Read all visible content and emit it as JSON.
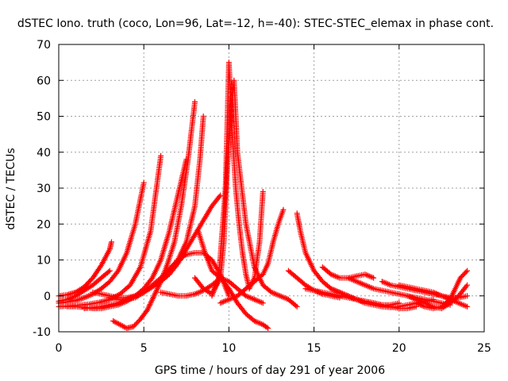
{
  "chart_data": {
    "type": "scatter",
    "title": "dSTEC Iono. truth (coco, Lon=96, Lat=-12, h=-40): STEC-STEC_elemax in phase cont.",
    "xlabel": "GPS time / hours of day 291 of year 2006",
    "ylabel": "dSTEC  / TECUs",
    "xlim": [
      0,
      25
    ],
    "ylim": [
      -10,
      70
    ],
    "xticks": [
      0,
      5,
      10,
      15,
      20,
      25
    ],
    "yticks": [
      -10,
      0,
      10,
      20,
      30,
      40,
      50,
      60,
      70
    ],
    "grid": true,
    "marker": "+",
    "color": "#ff0000",
    "series": [
      {
        "x": [
          0,
          0.5,
          1,
          1.5,
          2,
          2.5,
          3,
          3.1
        ],
        "y": [
          0,
          0.3,
          1,
          2.5,
          5,
          8.5,
          13,
          15
        ]
      },
      {
        "x": [
          0,
          0.5,
          1,
          1.5,
          2,
          2.5,
          3,
          3.5,
          4,
          4.5,
          5
        ],
        "y": [
          -2,
          -1.7,
          -1.3,
          -0.5,
          0.5,
          2,
          4,
          7,
          12,
          20,
          31.5
        ]
      },
      {
        "x": [
          0,
          0.6,
          1.2,
          1.8,
          2.4,
          3,
          3.6,
          4.2,
          4.8,
          5.4,
          6
        ],
        "y": [
          -3,
          -2.8,
          -2.6,
          -2.3,
          -1.8,
          -1,
          0.5,
          3,
          8,
          18,
          39
        ]
      },
      {
        "x": [
          0,
          0.5,
          1,
          1.5,
          2,
          2.5,
          3
        ],
        "y": [
          -1.5,
          -1,
          0,
          1.5,
          3,
          5,
          7
        ]
      },
      {
        "x": [
          0.5,
          1,
          1.5,
          2,
          2.5,
          3,
          3.5,
          4,
          4.5,
          5,
          5.5,
          6,
          6.5,
          7,
          7.5
        ],
        "y": [
          -3,
          -3,
          -3.2,
          -3.5,
          -3.5,
          -3,
          -2.5,
          -1.5,
          0,
          2,
          5,
          10,
          18,
          28,
          38
        ]
      },
      {
        "x": [
          1.5,
          2,
          2.5,
          3,
          3.5,
          4,
          4.5,
          5,
          5.5,
          6,
          6.5,
          7,
          7.5,
          8,
          8.5,
          9,
          9.5
        ],
        "y": [
          -3.5,
          -3.3,
          -3,
          -2.5,
          -2,
          -1,
          0,
          1,
          2.5,
          4,
          6,
          9,
          13,
          17,
          21,
          25,
          28
        ]
      },
      {
        "x": [
          3.2,
          3.6,
          4,
          4.4,
          4.8,
          5.2,
          5.6,
          6,
          6.4,
          6.8,
          7.2,
          7.6,
          7.8,
          8
        ],
        "y": [
          -7,
          -8,
          -9,
          -8.5,
          -6.5,
          -4,
          0,
          4,
          9,
          15,
          25,
          38,
          46,
          54
        ]
      },
      {
        "x": [
          2,
          2.5,
          3,
          3.5,
          4,
          4.5,
          5,
          5.5,
          6,
          6.5,
          7,
          7.5,
          8,
          8.3,
          8.5
        ],
        "y": [
          1,
          0.5,
          0,
          -0.5,
          -0.5,
          0,
          1,
          2.5,
          4.5,
          7,
          10,
          15,
          25,
          38,
          50
        ]
      },
      {
        "x": [
          3,
          3.5,
          4,
          4.5,
          5,
          5.5,
          6,
          6.5,
          7,
          7.5,
          8,
          8.5,
          9,
          9.5,
          10
        ],
        "y": [
          -0.5,
          -1,
          -1,
          -0.5,
          1,
          3,
          5,
          7.5,
          10,
          11.5,
          12,
          12,
          10,
          6,
          0
        ]
      },
      {
        "x": [
          6,
          6.5,
          7,
          7.5,
          8,
          8.5,
          9,
          9.5,
          10,
          10.5,
          11,
          11.5,
          12,
          12.3
        ],
        "y": [
          1,
          0.5,
          0,
          0,
          0.5,
          1.5,
          3,
          5,
          2,
          -2,
          -5,
          -7,
          -8,
          -9
        ]
      },
      {
        "x": [
          8,
          8.5,
          9,
          9.5,
          9.7,
          9.9,
          10.1,
          10.3,
          10.5,
          11,
          11.5,
          12,
          12.5,
          13,
          13.5,
          14
        ],
        "y": [
          5,
          2,
          0.5,
          5,
          15,
          35,
          50,
          60,
          40,
          20,
          8,
          3,
          1,
          0,
          -1,
          -3
        ]
      },
      {
        "x": [
          9,
          9.4,
          9.8,
          10,
          10.2,
          10.4,
          10.6,
          10.8,
          11,
          11.2,
          11.5,
          11.8,
          12
        ],
        "y": [
          0,
          5,
          30,
          65,
          45,
          30,
          20,
          12,
          6,
          2,
          5,
          15,
          29
        ]
      },
      {
        "x": [
          9.5,
          10,
          10.5,
          11,
          11.5,
          12,
          12.3,
          12.6,
          12.9,
          13.2
        ],
        "y": [
          -2,
          -1,
          0,
          2,
          4,
          6,
          9,
          15,
          20,
          24
        ]
      },
      {
        "x": [
          8.2,
          8.6,
          9,
          9.5,
          10,
          10.5,
          11,
          11.5,
          12
        ],
        "y": [
          18,
          12,
          7,
          5,
          4,
          2,
          0,
          -1,
          -2
        ]
      },
      {
        "x": [
          13.5,
          14,
          14.5,
          15,
          15.5,
          16,
          16.5
        ],
        "y": [
          7,
          5,
          3,
          1.5,
          0.5,
          0,
          -0.5
        ]
      },
      {
        "x": [
          14,
          14.2,
          14.5,
          15,
          15.5,
          16,
          16.5,
          17,
          17.5,
          18,
          18.5,
          19,
          19.5,
          20
        ],
        "y": [
          23,
          18,
          12,
          7,
          4,
          2,
          1,
          0,
          -1,
          -1.5,
          -2,
          -2.5,
          -2.5,
          -2
        ]
      },
      {
        "x": [
          14.5,
          15,
          15.5,
          16,
          16.5,
          17,
          17.5,
          18,
          18.5,
          19,
          19.5,
          20,
          20.5,
          21
        ],
        "y": [
          2,
          1.5,
          1,
          0.5,
          0,
          -0.5,
          -1,
          -1.5,
          -2,
          -2.5,
          -3,
          -3.5,
          -3.5,
          -3
        ]
      },
      {
        "x": [
          15.5,
          16,
          16.5,
          17,
          17.5,
          18,
          18.5
        ],
        "y": [
          8,
          6,
          5,
          5,
          5.5,
          6,
          5
        ]
      },
      {
        "x": [
          16,
          16.5,
          17,
          17.5,
          18,
          18.5,
          19,
          19.5,
          20,
          20.5,
          21,
          21.5,
          22
        ],
        "y": [
          2,
          1,
          0,
          -1,
          -2,
          -2.5,
          -3,
          -3.2,
          -3,
          -2.5,
          -2,
          -1.5,
          -1
        ]
      },
      {
        "x": [
          17,
          17.5,
          18,
          18.5,
          19,
          19.5,
          20,
          20.5,
          21,
          21.5,
          22,
          22.5,
          23
        ],
        "y": [
          5,
          4,
          3,
          2,
          1.5,
          1,
          0.5,
          0,
          -0.5,
          -1,
          -1.5,
          -2,
          -2.5
        ]
      },
      {
        "x": [
          19,
          19.5,
          20,
          20.5,
          21,
          21.5,
          22,
          22.5,
          23,
          23.5,
          24
        ],
        "y": [
          4,
          3,
          2.5,
          2,
          1.5,
          1,
          0.5,
          0,
          -0.5,
          -0.5,
          0
        ]
      },
      {
        "x": [
          20,
          20.5,
          21,
          21.5,
          22,
          22.5,
          23,
          23.5,
          24
        ],
        "y": [
          3,
          2.5,
          2,
          1.5,
          1,
          0,
          -1,
          -2,
          -3
        ]
      },
      {
        "x": [
          21,
          21.5,
          22,
          22.5,
          23,
          23.3,
          23.6,
          24
        ],
        "y": [
          -2,
          -3,
          -3.5,
          -3,
          -1,
          2,
          5,
          7
        ]
      },
      {
        "x": [
          20.5,
          21,
          21.5,
          22,
          22.5,
          23,
          23.5,
          24
        ],
        "y": [
          0,
          -1,
          -2,
          -3,
          -3.5,
          -2,
          0,
          3
        ]
      }
    ]
  }
}
